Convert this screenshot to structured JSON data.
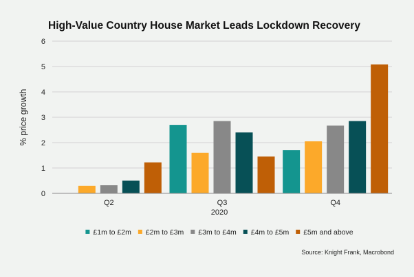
{
  "chart_data": {
    "type": "bar",
    "title": "High-Value Country House Market Leads Lockdown Recovery",
    "xlabel": "2020",
    "ylabel": "% price growth",
    "categories": [
      "Q2",
      "Q3",
      "Q4"
    ],
    "ylim": [
      0,
      6
    ],
    "yticks": [
      0,
      1,
      2,
      3,
      4,
      5,
      6
    ],
    "grid": true,
    "legend_position": "bottom",
    "series": [
      {
        "name": "£1m to £2m",
        "color": "#14958f",
        "values": [
          0,
          2.7,
          1.7
        ]
      },
      {
        "name": "£2m to £3m",
        "color": "#fca92a",
        "values": [
          0.3,
          1.6,
          2.05
        ]
      },
      {
        "name": "£3m to £4m",
        "color": "#888888",
        "values": [
          0.32,
          2.85,
          2.67
        ]
      },
      {
        "name": "£4m to £5m",
        "color": "#075056",
        "values": [
          0.5,
          2.4,
          2.85
        ]
      },
      {
        "name": "£5m and above",
        "color": "#bf5f06",
        "values": [
          1.22,
          1.45,
          5.08
        ]
      }
    ],
    "source": "Source: Knight Frank, Macrobond"
  }
}
